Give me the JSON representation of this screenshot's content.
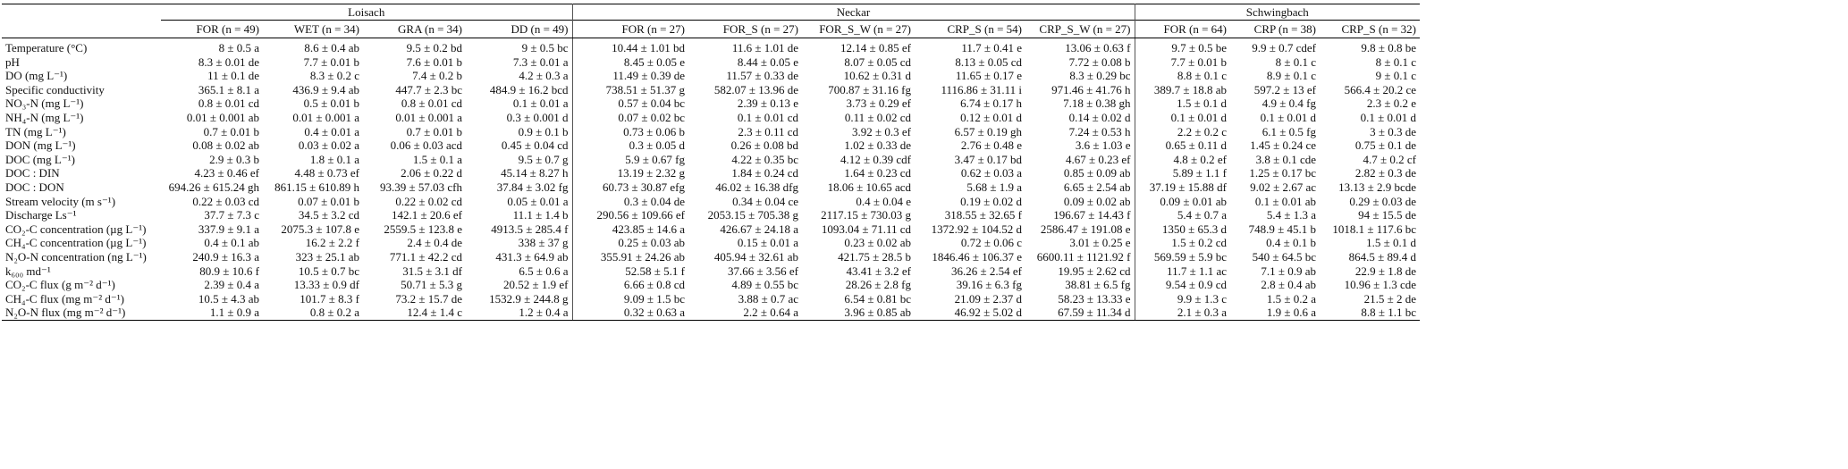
{
  "groups": [
    "Loisach",
    "Neckar",
    "Schwingbach"
  ],
  "sites": [
    "FOR (n = 49)",
    "WET (n = 34)",
    "GRA (n = 34)",
    "DD (n = 49)",
    "FOR (n = 27)",
    "FOR_S (n = 27)",
    "FOR_S_W (n = 27)",
    "CRP_S (n = 54)",
    "CRP_S_W (n = 27)",
    "FOR (n = 64)",
    "CRP (n = 38)",
    "CRP_S (n = 32)"
  ],
  "rows": [
    {
      "label": "Temperature (°C)",
      "values": [
        "8 ± 0.5 a",
        "8.6 ± 0.4 ab",
        "9.5 ± 0.2 bd",
        "9 ± 0.5 bc",
        "10.44 ± 1.01 bd",
        "11.6 ± 1.01 de",
        "12.14 ± 0.85 ef",
        "11.7 ± 0.41 e",
        "13.06 ± 0.63 f",
        "9.7 ± 0.5 be",
        "9.9 ± 0.7 cdef",
        "9.8 ± 0.8 be"
      ]
    },
    {
      "label": "pH",
      "values": [
        "8.3 ± 0.01 de",
        "7.7 ± 0.01 b",
        "7.6 ± 0.01 b",
        "7.3 ± 0.01 a",
        "8.45 ± 0.05 e",
        "8.44 ± 0.05 e",
        "8.07 ± 0.05 cd",
        "8.13 ± 0.05 cd",
        "7.72 ± 0.08 b",
        "7.7 ± 0.01 b",
        "8 ± 0.1 c",
        "8 ± 0.1 c"
      ]
    },
    {
      "label": "DO (mg L⁻¹)",
      "values": [
        "11 ± 0.1 de",
        "8.3 ± 0.2 c",
        "7.4 ± 0.2 b",
        "4.2 ± 0.3 a",
        "11.49 ± 0.39 de",
        "11.57 ± 0.33 de",
        "10.62 ± 0.31 d",
        "11.65 ± 0.17 e",
        "8.3 ± 0.29 bc",
        "8.8 ± 0.1 c",
        "8.9 ± 0.1 c",
        "9 ± 0.1 c"
      ]
    },
    {
      "label": "Specific conductivity",
      "values": [
        "365.1 ± 8.1 a",
        "436.9 ± 9.4 ab",
        "447.7 ± 2.3 bc",
        "484.9 ± 16.2 bcd",
        "738.51 ± 51.37 g",
        "582.07 ± 13.96 de",
        "700.87 ± 31.16 fg",
        "1116.86 ± 31.11 i",
        "971.46 ± 41.76 h",
        "389.7 ± 18.8 ab",
        "597.2 ± 13 ef",
        "566.4 ± 20.2 ce"
      ]
    },
    {
      "label": "NO₃-N (mg L⁻¹)",
      "values": [
        "0.8 ± 0.01 cd",
        "0.5 ± 0.01 b",
        "0.8 ± 0.01 cd",
        "0.1 ± 0.01 a",
        "0.57 ± 0.04 bc",
        "2.39 ± 0.13 e",
        "3.73 ± 0.29 ef",
        "6.74 ± 0.17 h",
        "7.18 ± 0.38 gh",
        "1.5 ± 0.1 d",
        "4.9 ± 0.4 fg",
        "2.3 ± 0.2 e"
      ]
    },
    {
      "label": "NH₄-N (mg L⁻¹)",
      "values": [
        "0.01 ± 0.001 ab",
        "0.01 ± 0.001 a",
        "0.01 ± 0.001 a",
        "0.3 ± 0.001 d",
        "0.07 ± 0.02 bc",
        "0.1 ± 0.01 cd",
        "0.11 ± 0.02 cd",
        "0.12 ± 0.01 d",
        "0.14 ± 0.02 d",
        "0.1 ± 0.01 d",
        "0.1 ± 0.01 d",
        "0.1 ± 0.01 d"
      ]
    },
    {
      "label": "TN (mg L⁻¹)",
      "values": [
        "0.7 ± 0.01 b",
        "0.4 ± 0.01 a",
        "0.7 ± 0.01 b",
        "0.9 ± 0.1 b",
        "0.73 ± 0.06 b",
        "2.3 ± 0.11 cd",
        "3.92 ± 0.3 ef",
        "6.57 ± 0.19 gh",
        "7.24 ± 0.53 h",
        "2.2 ± 0.2 c",
        "6.1 ± 0.5 fg",
        "3 ± 0.3 de"
      ]
    },
    {
      "label": "DON (mg L⁻¹)",
      "values": [
        "0.08 ± 0.02 ab",
        "0.03 ± 0.02 a",
        "0.06 ± 0.03 acd",
        "0.45 ± 0.04 cd",
        "0.3 ± 0.05 d",
        "0.26 ± 0.08 bd",
        "1.02 ± 0.33 de",
        "2.76 ± 0.48 e",
        "3.6 ± 1.03 e",
        "0.65 ± 0.11 d",
        "1.45 ± 0.24 ce",
        "0.75 ± 0.1 de"
      ]
    },
    {
      "label": "DOC (mg L⁻¹)",
      "values": [
        "2.9 ± 0.3 b",
        "1.8 ± 0.1 a",
        "1.5 ± 0.1 a",
        "9.5 ± 0.7 g",
        "5.9 ± 0.67 fg",
        "4.22 ± 0.35 bc",
        "4.12 ± 0.39 cdf",
        "3.47 ± 0.17 bd",
        "4.67 ± 0.23 ef",
        "4.8 ± 0.2 ef",
        "3.8 ± 0.1 cde",
        "4.7 ± 0.2 cf"
      ]
    },
    {
      "label": "DOC : DIN",
      "values": [
        "4.23 ± 0.46 ef",
        "4.48 ± 0.73 ef",
        "2.06 ± 0.22 d",
        "45.14 ± 8.27 h",
        "13.19 ± 2.32 g",
        "1.84 ± 0.24 cd",
        "1.64 ± 0.23 cd",
        "0.62 ± 0.03 a",
        "0.85 ± 0.09 ab",
        "5.89 ± 1.1 f",
        "1.25 ± 0.17 bc",
        "2.82 ± 0.3 de"
      ]
    },
    {
      "label": "DOC : DON",
      "values": [
        "694.26 ± 615.24 gh",
        "861.15 ± 610.89 h",
        "93.39 ± 57.03 cfh",
        "37.84 ± 3.02 fg",
        "60.73 ± 30.87 efg",
        "46.02 ± 16.38 dfg",
        "18.06 ± 10.65 acd",
        "5.68 ± 1.9 a",
        "6.65 ± 2.54 ab",
        "37.19 ± 15.88 df",
        "9.02 ± 2.67 ac",
        "13.13 ± 2.9 bcde"
      ]
    },
    {
      "label": "Stream velocity (m s⁻¹)",
      "values": [
        "0.22 ± 0.03 cd",
        "0.07 ± 0.01 b",
        "0.22 ± 0.02 cd",
        "0.05 ± 0.01 a",
        "0.3 ± 0.04 de",
        "0.34 ± 0.04 ce",
        "0.4 ± 0.04 e",
        "0.19 ± 0.02 d",
        "0.09 ± 0.02 ab",
        "0.09 ± 0.01 ab",
        "0.1 ± 0.01 ab",
        "0.29 ± 0.03 de"
      ]
    },
    {
      "label": "Discharge Ls⁻¹",
      "values": [
        "37.7 ± 7.3 c",
        "34.5 ± 3.2 cd",
        "142.1 ± 20.6 ef",
        "11.1 ± 1.4 b",
        "290.56 ± 109.66 ef",
        "2053.15 ± 705.38 g",
        "2117.15 ± 730.03 g",
        "318.55 ± 32.65 f",
        "196.67 ± 14.43 f",
        "5.4 ± 0.7 a",
        "5.4 ± 1.3 a",
        "94 ± 15.5 de"
      ]
    },
    {
      "label": "CO₂-C concentration (µg L⁻¹)",
      "values": [
        "337.9 ± 9.1 a",
        "2075.3 ± 107.8 e",
        "2559.5 ± 123.8 e",
        "4913.5 ± 285.4 f",
        "423.85 ± 14.6 a",
        "426.67 ± 24.18 a",
        "1093.04 ± 71.11 cd",
        "1372.92 ± 104.52 d",
        "2586.47 ± 191.08 e",
        "1350 ± 65.3 d",
        "748.9 ± 45.1 b",
        "1018.1 ± 117.6 bc"
      ]
    },
    {
      "label": "CH₄-C concentration (µg L⁻¹)",
      "values": [
        "0.4 ± 0.1 ab",
        "16.2 ± 2.2 f",
        "2.4 ± 0.4 de",
        "338 ± 37 g",
        "0.25 ± 0.03 ab",
        "0.15 ± 0.01 a",
        "0.23 ± 0.02 ab",
        "0.72 ± 0.06 c",
        "3.01 ± 0.25 e",
        "1.5 ± 0.2 cd",
        "0.4 ± 0.1 b",
        "1.5 ± 0.1 d"
      ]
    },
    {
      "label": "N₂O-N concentration (ng L⁻¹)",
      "values": [
        "240.9 ± 16.3 a",
        "323 ± 25.1 ab",
        "771.1 ± 42.2 cd",
        "431.3 ± 64.9 ab",
        "355.91 ± 24.26 ab",
        "405.94 ± 32.61 ab",
        "421.75 ± 28.5 b",
        "1846.46 ± 106.37 e",
        "6600.11 ± 1121.92 f",
        "569.59 ± 5.9 bc",
        "540 ± 64.5 bc",
        "864.5 ± 89.4 d"
      ]
    },
    {
      "label": "k₆₀₀ md⁻¹",
      "values": [
        "80.9 ± 10.6 f",
        "10.5 ± 0.7 bc",
        "31.5 ± 3.1 df",
        "6.5 ± 0.6 a",
        "52.58 ± 5.1 f",
        "37.66 ± 3.56 ef",
        "43.41 ± 3.2 ef",
        "36.26 ± 2.54 ef",
        "19.95 ± 2.62 cd",
        "11.7 ± 1.1 ac",
        "7.1 ± 0.9 ab",
        "22.9 ± 1.8 de"
      ]
    },
    {
      "label": "CO₂-C flux (g m⁻² d⁻¹)",
      "values": [
        "2.39 ± 0.4 a",
        "13.33 ± 0.9 df",
        "50.71 ± 5.3 g",
        "20.52 ± 1.9 ef",
        "6.66 ± 0.8 cd",
        "4.89 ± 0.55 bc",
        "28.26 ± 2.8 fg",
        "39.16 ± 6.3 fg",
        "38.81 ± 6.5 fg",
        "9.54 ± 0.9 cd",
        "2.8 ± 0.4 ab",
        "10.96 ± 1.3 cde"
      ]
    },
    {
      "label": "CH₄-C flux (mg m⁻² d⁻¹)",
      "values": [
        "10.5 ± 4.3 ab",
        "101.7 ± 8.3 f",
        "73.2 ± 15.7 de",
        "1532.9 ± 244.8 g",
        "9.09 ± 1.5 bc",
        "3.88 ± 0.7 ac",
        "6.54 ± 0.81 bc",
        "21.09 ± 2.37 d",
        "58.23 ± 13.33 e",
        "9.9 ± 1.3 c",
        "1.5 ± 0.2 a",
        "21.5 ± 2 de"
      ]
    },
    {
      "label": "N₂O-N flux (mg m⁻² d⁻¹)",
      "values": [
        "1.1 ± 0.9 a",
        "0.8 ± 0.2 a",
        "12.4 ± 1.4 c",
        "1.2 ± 0.4 a",
        "0.32 ± 0.63 a",
        "2.2 ± 0.64 a",
        "3.96 ± 0.85 ab",
        "46.92 ± 5.02 d",
        "67.59 ± 11.34 d",
        "2.1 ± 0.3 a",
        "1.9 ± 0.6 a",
        "8.8 ± 1.1 bc"
      ]
    }
  ]
}
